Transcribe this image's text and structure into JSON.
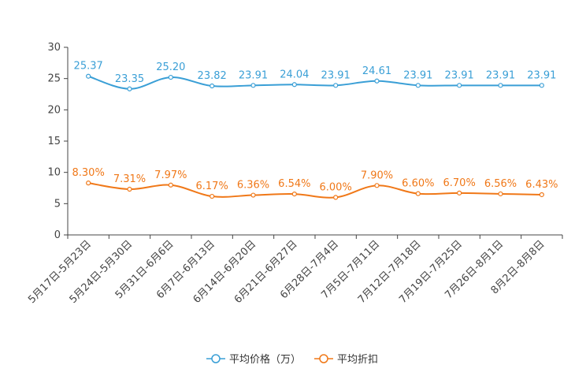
{
  "chart_data": {
    "type": "line",
    "categories": [
      "5月17日-5月23日",
      "5月24日-5月30日",
      "5月31日-6月6日",
      "6月7日-6月13日",
      "6月14日-6月20日",
      "6月21日-6月27日",
      "6月28日-7月4日",
      "7月5日-7月11日",
      "7月12日-7月18日",
      "7月19日-7月25日",
      "7月26日-8月1日",
      "8月2日-8月8日"
    ],
    "y_ticks": [
      "0",
      "5",
      "10",
      "15",
      "20",
      "25",
      "30"
    ],
    "ylim": [
      0,
      30
    ],
    "series": [
      {
        "name": "平均价格（万）",
        "color": "#3A9FD6",
        "values": [
          25.37,
          23.35,
          25.2,
          23.82,
          23.91,
          24.04,
          23.91,
          24.61,
          23.91,
          23.91,
          23.91,
          23.91
        ],
        "labels": [
          "25.37",
          "23.35",
          "25.20",
          "23.82",
          "23.91",
          "24.04",
          "23.91",
          "24.61",
          "23.91",
          "23.91",
          "23.91",
          "23.91"
        ]
      },
      {
        "name": "平均折扣",
        "color": "#F07818",
        "values": [
          8.3,
          7.31,
          7.97,
          6.17,
          6.36,
          6.54,
          6.0,
          7.9,
          6.6,
          6.7,
          6.56,
          6.43
        ],
        "labels": [
          "8.30%",
          "7.31%",
          "7.97%",
          "6.17%",
          "6.36%",
          "6.54%",
          "6.00%",
          "7.90%",
          "6.60%",
          "6.70%",
          "6.56%",
          "6.43%"
        ]
      }
    ],
    "legend_position": "bottom-center"
  }
}
